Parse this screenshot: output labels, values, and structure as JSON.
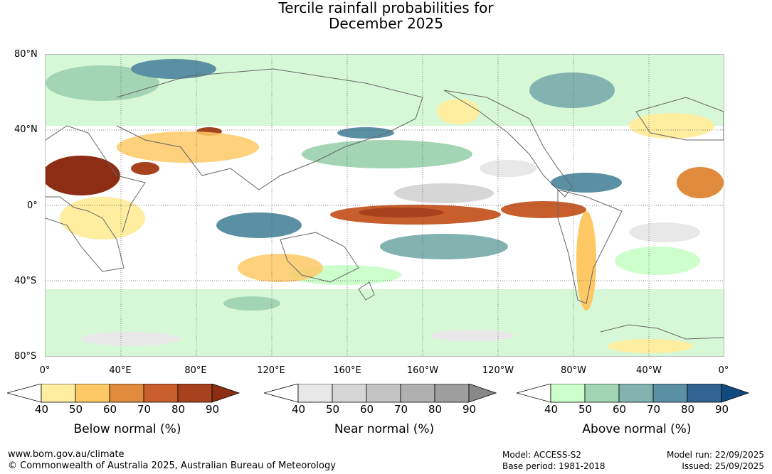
{
  "title": {
    "line1": "Tercile rainfall probabilities for",
    "line2": "December 2025"
  },
  "axes": {
    "lat_labels": [
      "80°N",
      "40°N",
      "0°",
      "40°S",
      "80°S"
    ],
    "lon_labels": [
      "0°",
      "40°E",
      "80°E",
      "120°E",
      "160°E",
      "160°W",
      "120°W",
      "80°W",
      "40°W",
      "0°"
    ]
  },
  "legends": {
    "below": {
      "title": "Below normal (%)",
      "ticks": [
        "40",
        "50",
        "60",
        "70",
        "80",
        "90"
      ],
      "colors": [
        "#ffffff",
        "#ffeda0",
        "#fec965",
        "#e08b3e",
        "#c95e2d",
        "#a8421e",
        "#8c2d14"
      ]
    },
    "near": {
      "title": "Near normal (%)",
      "ticks": [
        "40",
        "50",
        "60",
        "70",
        "80",
        "90"
      ],
      "colors": [
        "#ffffff",
        "#e8e8e8",
        "#d6d6d6",
        "#c4c4c4",
        "#b0b0b0",
        "#9e9e9e",
        "#888888"
      ]
    },
    "above": {
      "title": "Above normal (%)",
      "ticks": [
        "40",
        "50",
        "60",
        "70",
        "80",
        "90"
      ],
      "colors": [
        "#ffffff",
        "#ccffcc",
        "#a3d4b3",
        "#83b3b0",
        "#5b8fa3",
        "#32628f",
        "#134a7e"
      ]
    }
  },
  "footer": {
    "url": "www.bom.gov.au/climate",
    "copyright": "© Commonwealth of Australia 2025, Australian Bureau of Meteorology",
    "model": "Model: ACCESS-S2",
    "base_period": "Base period: 1981-2018",
    "model_run": "Model run: 22/09/2025",
    "issued": "Issued: 25/09/2025"
  }
}
